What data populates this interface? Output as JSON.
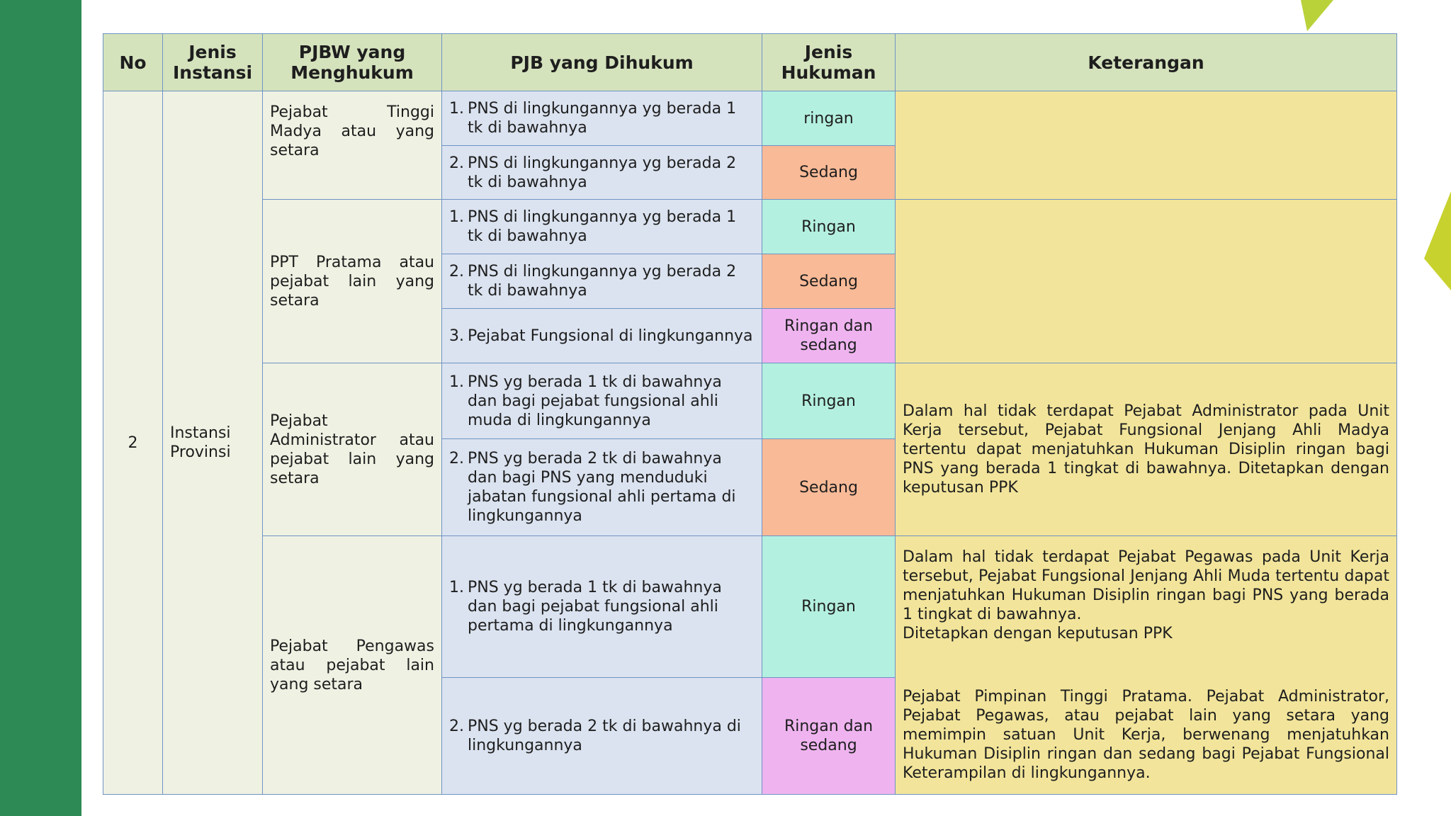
{
  "table": {
    "headers": [
      "No",
      "Jenis Instansi",
      "PJBW yang Menghukum",
      "PJB yang Dihukum",
      "Jenis Hukuman",
      "Keterangan"
    ],
    "no": "2",
    "instansi": "Instansi Provinsi",
    "groups": [
      {
        "pjbw": "Pejabat Tinggi Madya atau yang setara",
        "keterangan": [],
        "items": [
          {
            "num": "1.",
            "pjb": "PNS di lingkungannya yg berada 1 tk di bawahnya",
            "hukuman": "ringan",
            "color": "#b4f0df"
          },
          {
            "num": "2.",
            "pjb": "PNS di lingkungannya yg berada 2 tk di bawahnya",
            "hukuman": "Sedang",
            "color": "#f8ba97"
          }
        ]
      },
      {
        "pjbw": "PPT Pratama atau pejabat lain yang setara",
        "keterangan": [],
        "items": [
          {
            "num": "1.",
            "pjb": "PNS di lingkungannya yg berada 1 tk di bawahnya",
            "hukuman": "Ringan",
            "color": "#b4f0df"
          },
          {
            "num": "2.",
            "pjb": "PNS di lingkungannya yg berada 2 tk di bawahnya",
            "hukuman": "Sedang",
            "color": "#f8ba97"
          },
          {
            "num": "3.",
            "pjb": "Pejabat Fungsional di lingkungannya",
            "hukuman": "Ringan dan sedang",
            "color": "#efb4f0"
          }
        ]
      },
      {
        "pjbw": "Pejabat Administrator atau pejabat lain yang setara",
        "keterangan": [
          "Dalam hal tidak terdapat Pejabat Administrator pada Unit Kerja tersebut, Pejabat Fungsional Jenjang Ahli Madya tertentu dapat menjatuhkan Hukuman Disiplin ringan bagi PNS yang berada 1 tingkat di bawahnya. Ditetapkan dengan keputusan PPK"
        ],
        "items": [
          {
            "num": "1.",
            "pjb": "PNS yg berada 1 tk di bawahnya dan bagi pejabat fungsional ahli muda di lingkungannya",
            "hukuman": "Ringan",
            "color": "#b4f0df"
          },
          {
            "num": "2.",
            "pjb": "PNS yg berada 2 tk di bawahnya dan bagi PNS yang menduduki jabatan fungsional ahli pertama di lingkungannya",
            "hukuman": "Sedang",
            "color": "#f8ba97"
          }
        ]
      },
      {
        "pjbw": "Pejabat Pengawas atau pejabat lain yang setara",
        "keterangan": [
          "Dalam hal tidak terdapat Pejabat Pegawas pada Unit Kerja tersebut, Pejabat Fungsional Jenjang Ahli Muda tertentu dapat menjatuhkan Hukuman Disiplin ringan bagi PNS yang berada 1 tingkat di bawahnya.",
          "Ditetapkan dengan keputusan PPK",
          "Pejabat Pimpinan Tinggi Pratama. Pejabat Administrator, Pejabat Pegawas, atau pejabat lain yang setara yang memimpin satuan Unit Kerja, berwenang menjatuhkan Hukuman Disiplin ringan dan sedang bagi Pejabat Fungsional Keterampilan di lingkungannya."
        ],
        "items": [
          {
            "num": "1.",
            "pjb": "PNS yg berada 1 tk di bawahnya dan bagi pejabat fungsional ahli pertama di lingkungannya",
            "hukuman": "Ringan",
            "color": "#b4f0df"
          },
          {
            "num": "2.",
            "pjb": "PNS yg berada 2 tk di bawahnya di lingkungannya",
            "hukuman": "Ringan dan sedang",
            "color": "#efb4f0"
          }
        ]
      }
    ]
  }
}
